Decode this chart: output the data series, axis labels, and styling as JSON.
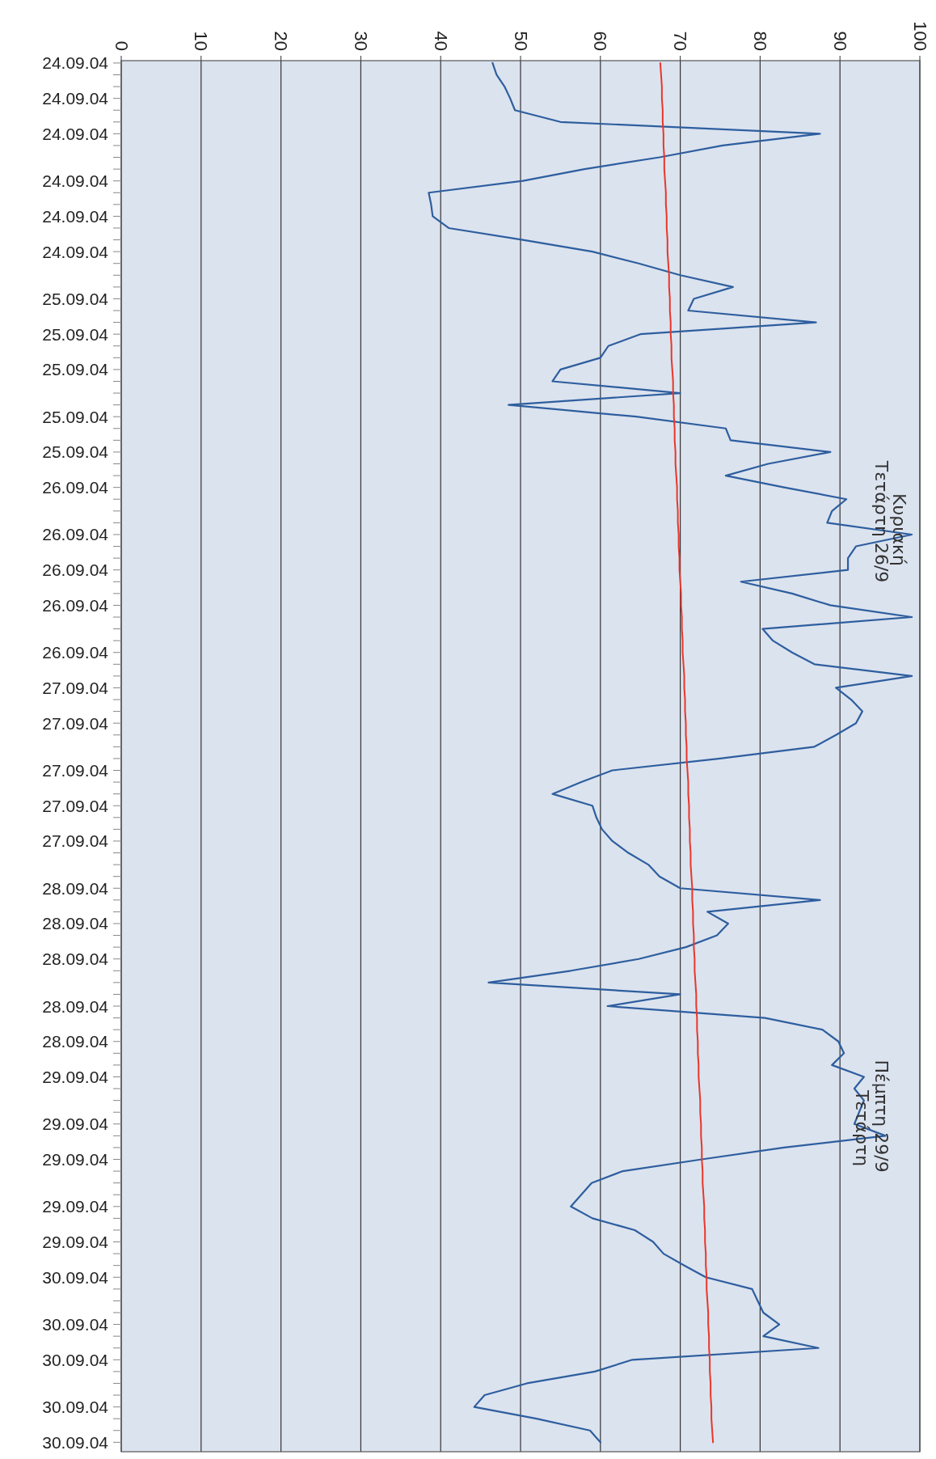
{
  "chart_data": {
    "type": "line",
    "orientation": "horizontal",
    "categories": [
      "24.09.04",
      null,
      null,
      "24.09.04",
      null,
      null,
      "24.09.04",
      null,
      null,
      null,
      "24.09.04",
      null,
      null,
      "24.09.04",
      null,
      null,
      "24.09.04",
      null,
      null,
      null,
      "25.09.04",
      null,
      null,
      "25.09.04",
      null,
      null,
      "25.09.04",
      null,
      null,
      null,
      "25.09.04",
      null,
      null,
      "25.09.04",
      null,
      null,
      "26.09.04",
      null,
      null,
      null,
      "26.09.04",
      null,
      null,
      "26.09.04",
      null,
      null,
      "26.09.04",
      null,
      null,
      null,
      "26.09.04",
      null,
      null,
      "27.09.04",
      null,
      null,
      "27.09.04",
      null,
      null,
      null,
      "27.09.04",
      null,
      null,
      "27.09.04",
      null,
      null,
      "27.09.04",
      null,
      null,
      null,
      "28.09.04",
      null,
      null,
      "28.09.04",
      null,
      null,
      "28.09.04",
      null,
      null,
      null,
      "28.09.04",
      null,
      null,
      "28.09.04",
      null,
      null,
      "29.09.04",
      null,
      null,
      null,
      "29.09.04",
      null,
      null,
      "29.09.04",
      null,
      null,
      null,
      "29.09.04",
      null,
      null,
      "29.09.04",
      null,
      null,
      "30.09.04",
      null,
      null,
      null,
      "30.09.04",
      null,
      null,
      "30.09.04",
      null,
      null,
      null,
      "30.09.04",
      null,
      null,
      "30.09.04"
    ],
    "series": [
      {
        "color": "#2e5e9e",
        "values": [
          46.5,
          47,
          48,
          48.7,
          49.3,
          55,
          87.5,
          75.3,
          67.4,
          58,
          50.3,
          38.5,
          38.8,
          39,
          41,
          50.3,
          59,
          64.8,
          70,
          76.6,
          71.7,
          71,
          87,
          65,
          61,
          60,
          55,
          54,
          70,
          48.5,
          64.5,
          75.7,
          76.3,
          88.8,
          81,
          75.7,
          83,
          90.8,
          89,
          88.4,
          99,
          92,
          91,
          91,
          77.6,
          84,
          88.8,
          99,
          80.3,
          81.6,
          84,
          86.8,
          99,
          89.5,
          91.4,
          92.8,
          92,
          89.5,
          86.8,
          75,
          61.5,
          57.6,
          54,
          59,
          59.5,
          60.2,
          61.5,
          63.5,
          66,
          67.4,
          70,
          87.5,
          73.4,
          76,
          74.6,
          70.7,
          64.8,
          56.3,
          46,
          70,
          60.9,
          80.6,
          87.8,
          89.8,
          90.5,
          89,
          93,
          91.8,
          93,
          92.4,
          91.8,
          95.7,
          83,
          72.7,
          62.8,
          58.9,
          57.6,
          56.3,
          59,
          64.3,
          66.6,
          67.9,
          70.5,
          73.2,
          79,
          79.7,
          80.4,
          82.4,
          80.4,
          87.3,
          64,
          59.3,
          50.8,
          45.5,
          44.2,
          52,
          58.7,
          60
        ]
      },
      {
        "color": "#e8372a",
        "values": [
          67.5,
          67.6,
          67.7,
          67.7,
          67.8,
          67.8,
          67.9,
          67.9,
          68.0,
          68.0,
          68.1,
          68.2,
          68.2,
          68.3,
          68.3,
          68.4,
          68.4,
          68.5,
          68.6,
          68.6,
          68.7,
          68.7,
          68.8,
          68.8,
          68.9,
          68.9,
          69.0,
          69.1,
          69.1,
          69.2,
          69.2,
          69.3,
          69.3,
          69.4,
          69.4,
          69.5,
          69.6,
          69.6,
          69.7,
          69.7,
          69.8,
          69.8,
          69.9,
          69.9,
          70.0,
          70.1,
          70.1,
          70.2,
          70.2,
          70.3,
          70.3,
          70.4,
          70.5,
          70.5,
          70.6,
          70.6,
          70.7,
          70.7,
          70.8,
          70.8,
          70.9,
          71.0,
          71.0,
          71.1,
          71.1,
          71.2,
          71.2,
          71.3,
          71.3,
          71.4,
          71.5,
          71.5,
          71.6,
          71.6,
          71.7,
          71.7,
          71.8,
          71.8,
          71.9,
          72.0,
          72.0,
          72.1,
          72.1,
          72.2,
          72.2,
          72.3,
          72.3,
          72.4,
          72.5,
          72.5,
          72.6,
          72.6,
          72.7,
          72.7,
          72.8,
          72.8,
          72.9,
          73.0,
          73.0,
          73.1,
          73.1,
          73.2,
          73.2,
          73.3,
          73.3,
          73.4,
          73.5,
          73.5,
          73.6,
          73.6,
          73.7,
          73.7,
          73.8,
          73.8,
          73.9,
          73.9,
          74.0,
          74.1
        ]
      }
    ],
    "xlim": [
      0,
      100
    ],
    "xticks": [
      0,
      10,
      20,
      30,
      40,
      50,
      60,
      70,
      80,
      90,
      100
    ],
    "grid": "x",
    "annotations": [
      "Κυριακή",
      "Τετάρτη 26/9",
      "Πέμπτη 29/9",
      "Τετάρτη"
    ]
  }
}
